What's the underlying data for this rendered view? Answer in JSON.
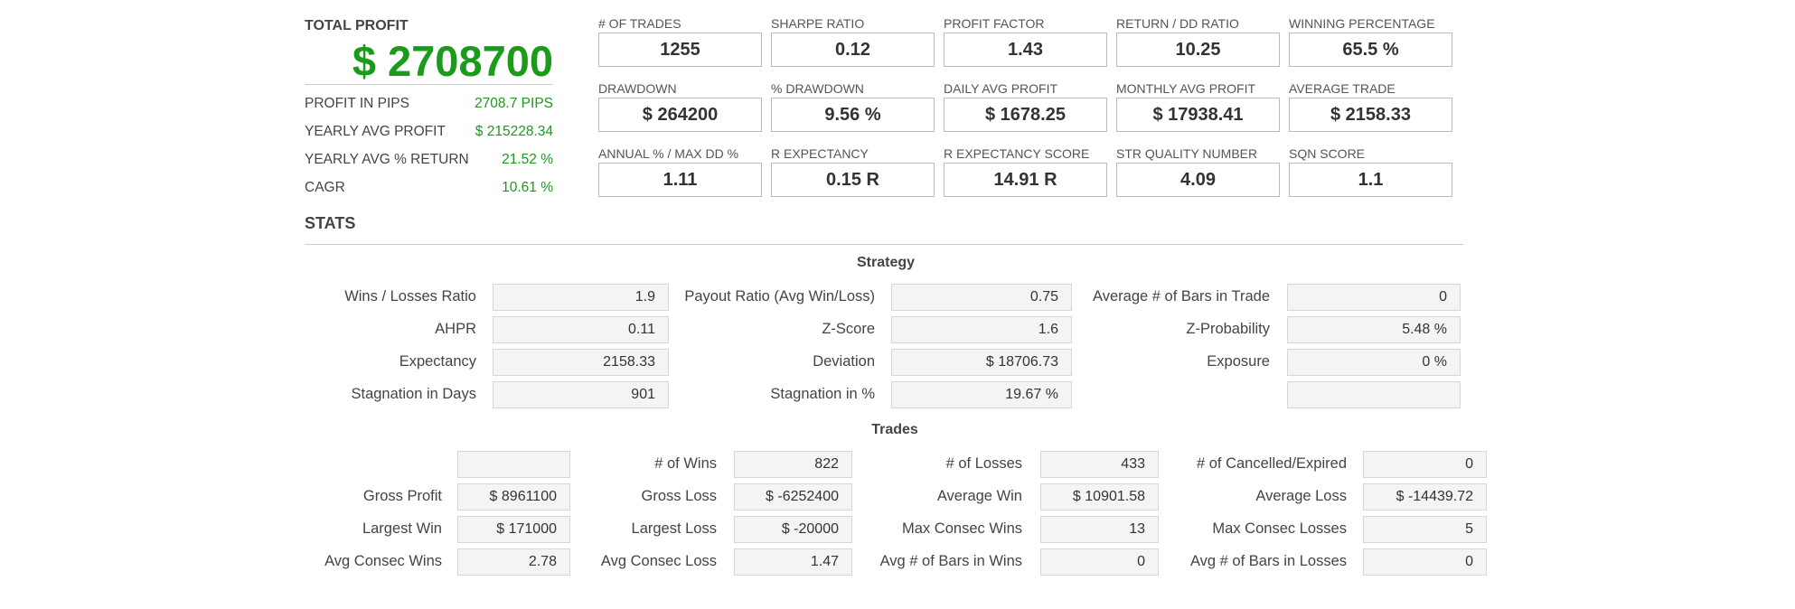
{
  "total_profit": {
    "label": "TOTAL PROFIT",
    "value": "$ 2708700",
    "rows": [
      {
        "label": "PROFIT IN PIPS",
        "value": "2708.7 PIPS"
      },
      {
        "label": "YEARLY AVG PROFIT",
        "value": "$ 215228.34"
      },
      {
        "label": "YEARLY AVG % RETURN",
        "value": "21.52 %"
      },
      {
        "label": "CAGR",
        "value": "10.61 %"
      }
    ]
  },
  "metrics": [
    [
      {
        "label": "# OF TRADES",
        "value": "1255"
      },
      {
        "label": "SHARPE RATIO",
        "value": "0.12"
      },
      {
        "label": "PROFIT FACTOR",
        "value": "1.43"
      },
      {
        "label": "RETURN / DD RATIO",
        "value": "10.25"
      },
      {
        "label": "WINNING PERCENTAGE",
        "value": "65.5 %"
      }
    ],
    [
      {
        "label": "DRAWDOWN",
        "value": "$ 264200"
      },
      {
        "label": "% DRAWDOWN",
        "value": "9.56 %"
      },
      {
        "label": "DAILY AVG PROFIT",
        "value": "$ 1678.25"
      },
      {
        "label": "MONTHLY AVG PROFIT",
        "value": "$ 17938.41"
      },
      {
        "label": "AVERAGE TRADE",
        "value": "$ 2158.33"
      }
    ],
    [
      {
        "label": "ANNUAL % / MAX DD %",
        "value": "1.11"
      },
      {
        "label": "R EXPECTANCY",
        "value": "0.15 R"
      },
      {
        "label": "R EXPECTANCY SCORE",
        "value": "14.91 R"
      },
      {
        "label": "STR QUALITY NUMBER",
        "value": "4.09"
      },
      {
        "label": "SQN SCORE",
        "value": "1.1"
      }
    ]
  ],
  "stats": {
    "title": "STATS",
    "strategy": {
      "title": "Strategy",
      "rows": [
        [
          {
            "label": "Wins / Losses Ratio",
            "value": "1.9"
          },
          {
            "label": "Payout Ratio (Avg Win/Loss)",
            "value": "0.75"
          },
          {
            "label": "Average # of Bars in Trade",
            "value": "0"
          }
        ],
        [
          {
            "label": "AHPR",
            "value": "0.11"
          },
          {
            "label": "Z-Score",
            "value": "1.6"
          },
          {
            "label": "Z-Probability",
            "value": "5.48 %"
          }
        ],
        [
          {
            "label": "Expectancy",
            "value": "2158.33"
          },
          {
            "label": "Deviation",
            "value": "$ 18706.73"
          },
          {
            "label": "Exposure",
            "value": "0 %"
          }
        ],
        [
          {
            "label": "Stagnation in Days",
            "value": "901"
          },
          {
            "label": "Stagnation in %",
            "value": "19.67 %"
          },
          {
            "label": "",
            "value": ""
          }
        ]
      ]
    },
    "trades": {
      "title": "Trades",
      "rows": [
        [
          {
            "label": "",
            "value": ""
          },
          {
            "label": "# of Wins",
            "value": "822"
          },
          {
            "label": "# of Losses",
            "value": "433"
          },
          {
            "label": "# of Cancelled/Expired",
            "value": "0"
          }
        ],
        [
          {
            "label": "Gross Profit",
            "value": "$ 8961100"
          },
          {
            "label": "Gross Loss",
            "value": "$ -6252400"
          },
          {
            "label": "Average Win",
            "value": "$ 10901.58"
          },
          {
            "label": "Average Loss",
            "value": "$ -14439.72"
          }
        ],
        [
          {
            "label": "Largest Win",
            "value": "$ 171000"
          },
          {
            "label": "Largest Loss",
            "value": "$ -20000"
          },
          {
            "label": "Max Consec Wins",
            "value": "13"
          },
          {
            "label": "Max Consec Losses",
            "value": "5"
          }
        ],
        [
          {
            "label": "Avg Consec Wins",
            "value": "2.78"
          },
          {
            "label": "Avg Consec Loss",
            "value": "1.47"
          },
          {
            "label": "Avg # of Bars in Wins",
            "value": "0"
          },
          {
            "label": "Avg # of Bars in Losses",
            "value": "0"
          }
        ]
      ]
    }
  }
}
